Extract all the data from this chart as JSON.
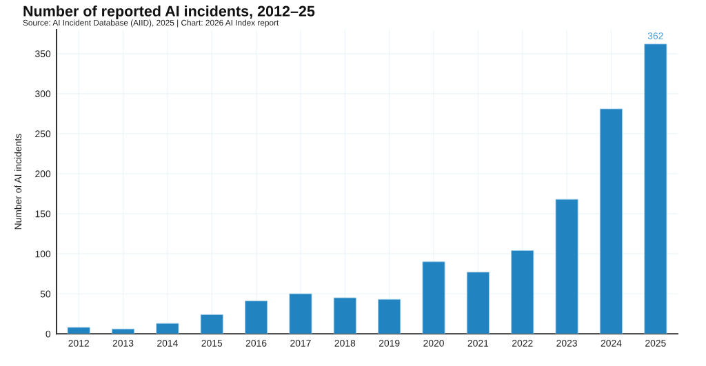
{
  "chart_data": {
    "type": "bar",
    "title": "Number of reported AI incidents, 2012–25",
    "subtitle": "Source: AI Incident Database (AIID), 2025 | Chart: 2026 AI Index report",
    "ylabel": "Number of AI incidents",
    "categories": [
      "2012",
      "2013",
      "2014",
      "2015",
      "2016",
      "2017",
      "2018",
      "2019",
      "2020",
      "2021",
      "2022",
      "2023",
      "2024",
      "2025"
    ],
    "values": [
      8,
      6,
      13,
      24,
      41,
      50,
      45,
      43,
      90,
      77,
      104,
      168,
      281,
      362
    ],
    "value_labels": [
      null,
      null,
      null,
      null,
      null,
      null,
      null,
      null,
      null,
      null,
      null,
      null,
      null,
      "362"
    ],
    "color": "#2183c0",
    "ylim": [
      0,
      380
    ],
    "yticks": [
      0,
      50,
      100,
      150,
      200,
      250,
      300,
      350
    ],
    "grid": true,
    "legend": false
  }
}
